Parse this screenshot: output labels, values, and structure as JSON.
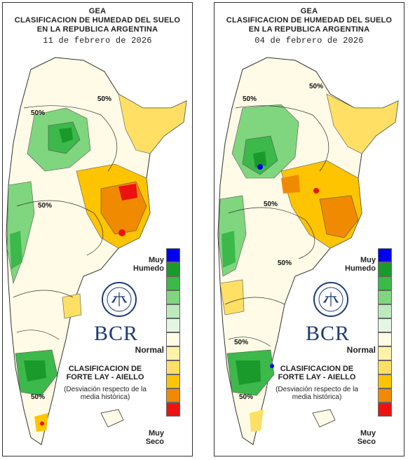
{
  "header": {
    "line1": "GEA",
    "line2": "CLASIFICACION DE HUMEDAD DEL SUELO",
    "line3": "EN LA REPUBLICA ARGENTINA"
  },
  "panels": [
    {
      "date": "11 de febrero de 2026"
    },
    {
      "date": "04 de febrero de 2026"
    }
  ],
  "contour_label": "50%",
  "legend": {
    "top_label": "Muy\nHumedo",
    "mid_label": "Normal",
    "bottom_label": "Muy\nSeco",
    "colors": [
      "#0000ee",
      "#1a9a2a",
      "#3db84a",
      "#7fd67f",
      "#bdeabd",
      "#e4f5e4",
      "#fffbe6",
      "#fff2a8",
      "#ffe065",
      "#ffc400",
      "#f08a00",
      "#ee1111"
    ]
  },
  "classification": {
    "title": "CLASIFICACION DE FORTE LAY - AIELLO",
    "subtitle": "(Desviación respecto de la media histórica)"
  },
  "brand": {
    "name": "BCR",
    "seal_text": "BOLSA DE COMERCIO DE ROSARIO"
  }
}
